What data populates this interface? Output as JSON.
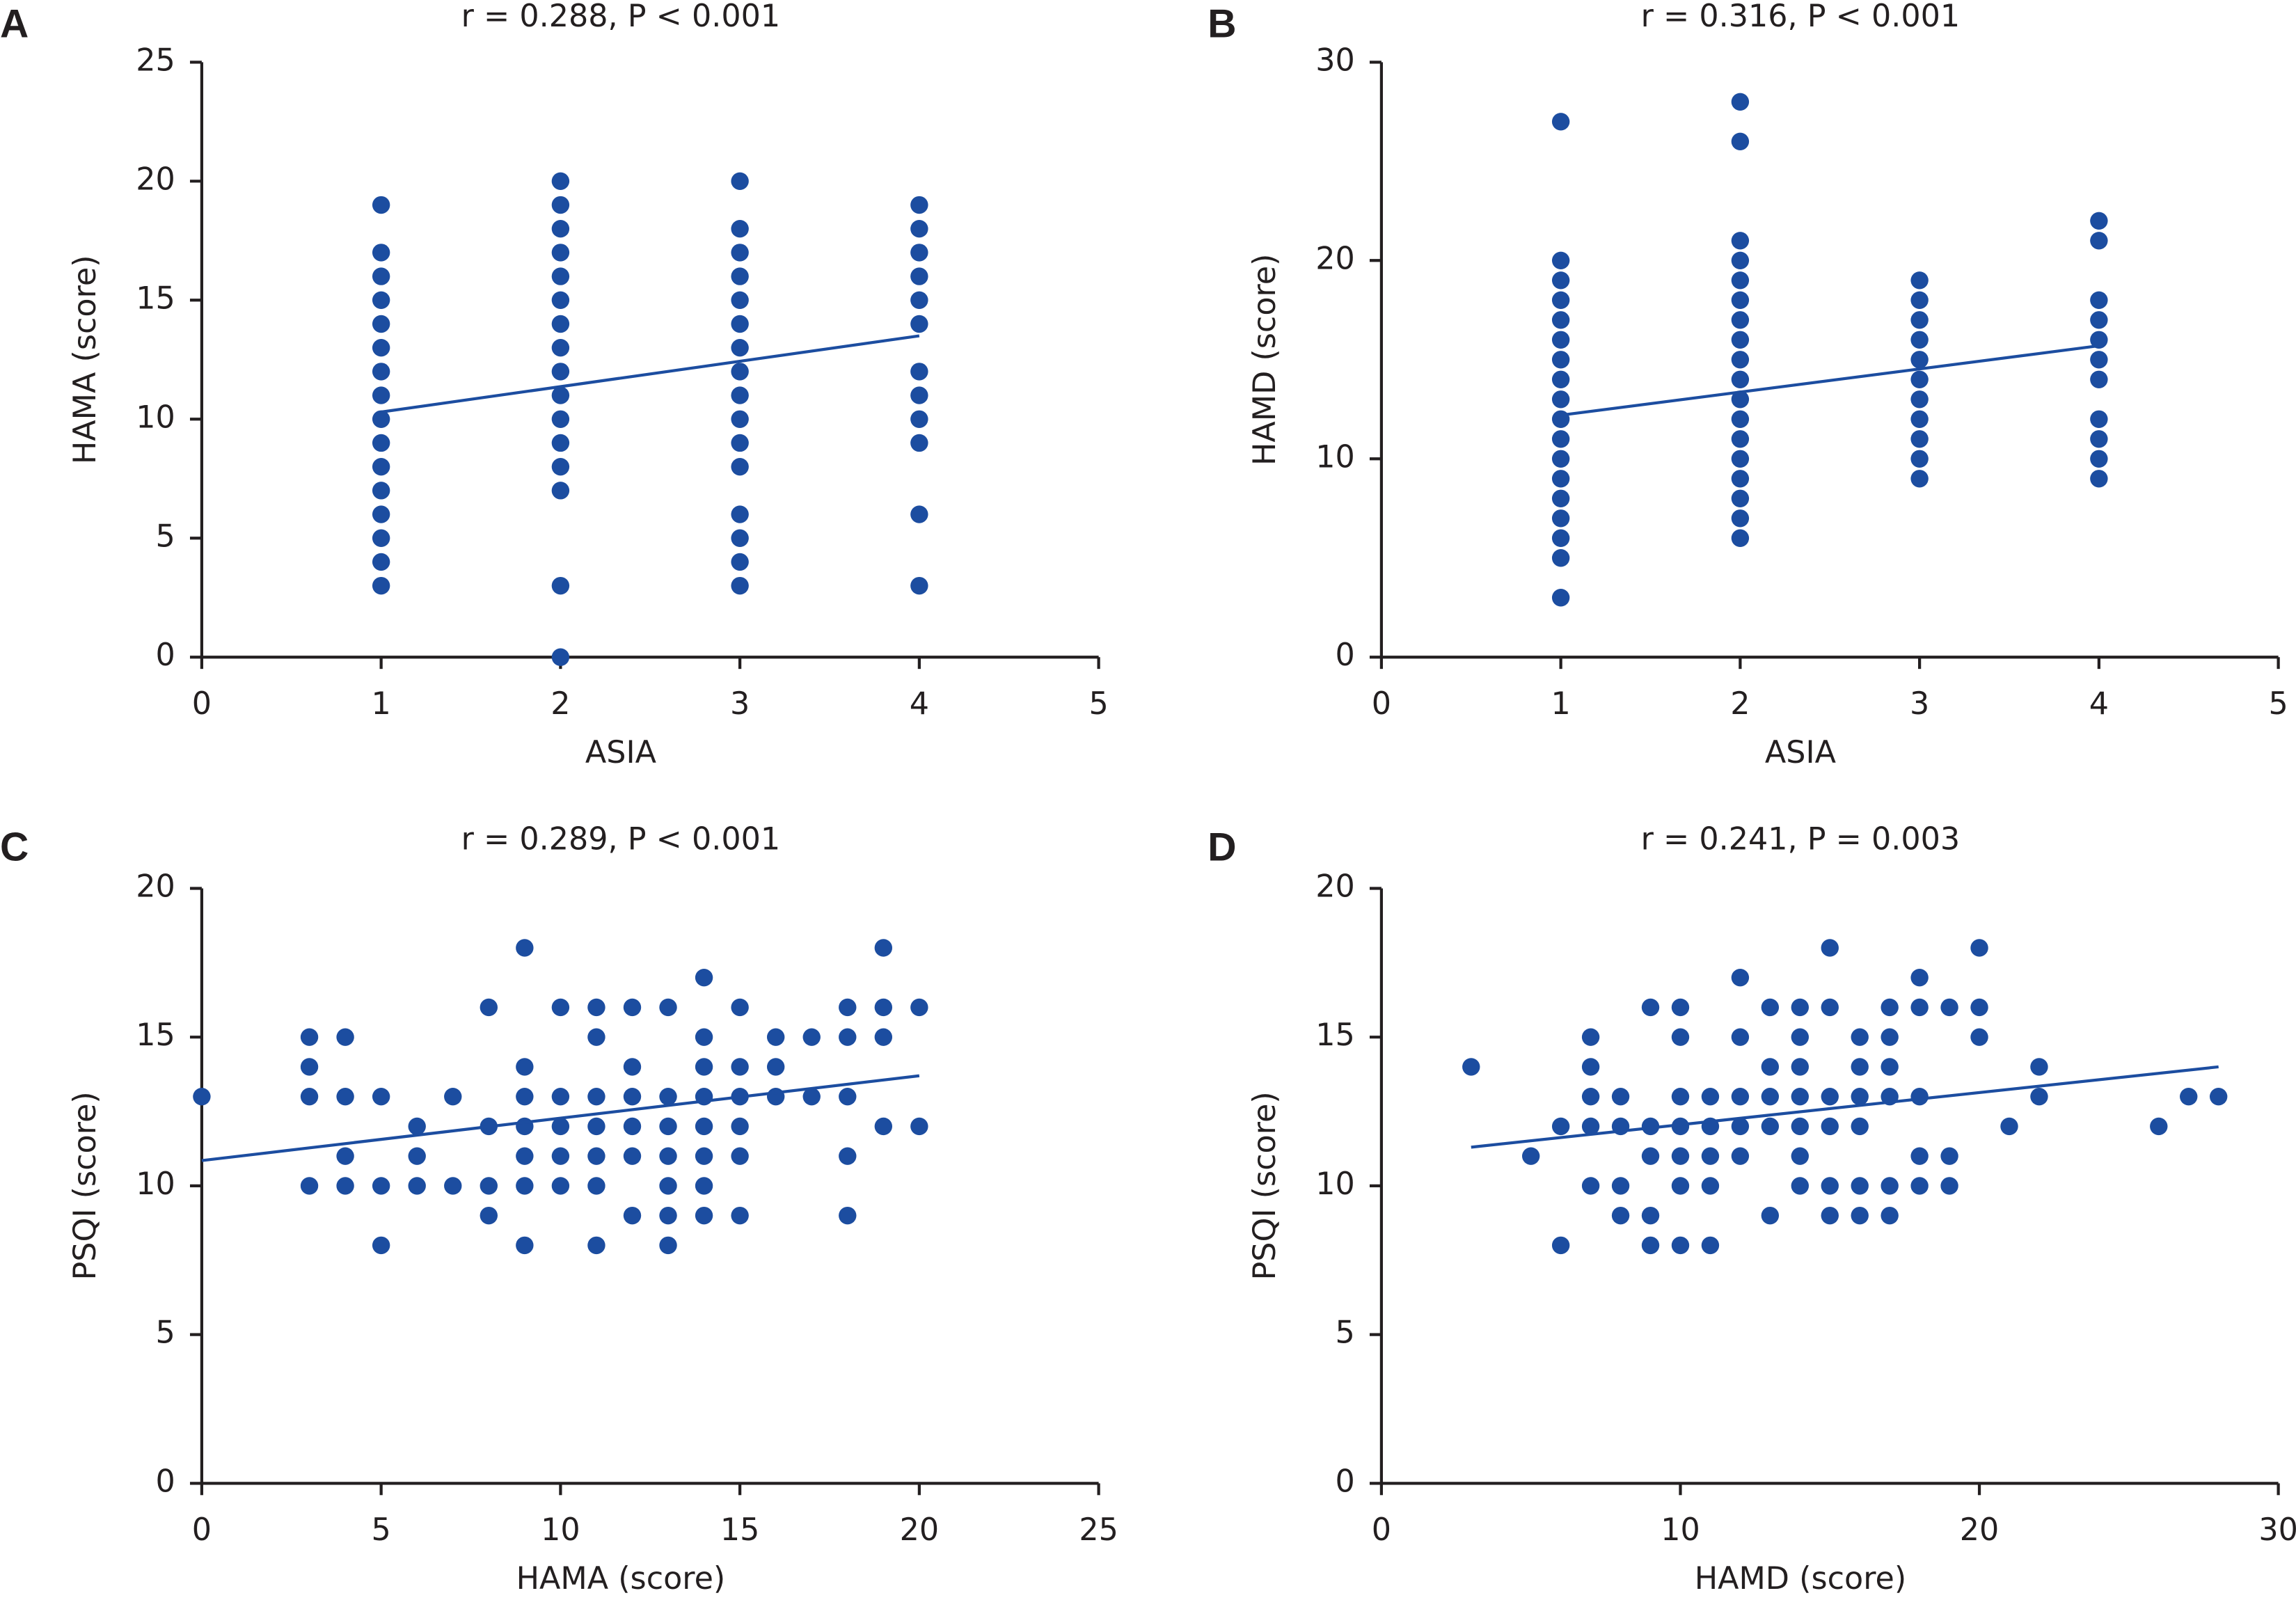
{
  "chart_data": [
    {
      "type": "scatter",
      "panel": "A",
      "title": "r = 0.288, P < 0.001",
      "xlabel": "ASIA",
      "ylabel": "HAMA (score)",
      "x": [
        1,
        1,
        1,
        1,
        1,
        1,
        1,
        1,
        1,
        1,
        1,
        1,
        1,
        1,
        1,
        1,
        2,
        2,
        2,
        2,
        2,
        2,
        2,
        2,
        2,
        2,
        2,
        2,
        2,
        2,
        2,
        2,
        3,
        3,
        3,
        3,
        3,
        3,
        3,
        3,
        3,
        3,
        3,
        3,
        3,
        3,
        3,
        3,
        4,
        4,
        4,
        4,
        4,
        4,
        4,
        4,
        4,
        4,
        4,
        4
      ],
      "values": [
        3,
        4,
        5,
        6,
        7,
        8,
        9,
        10,
        11,
        12,
        13,
        14,
        15,
        16,
        17,
        19,
        0,
        3,
        7,
        8,
        9,
        10,
        11,
        12,
        13,
        14,
        15,
        16,
        17,
        18,
        19,
        20,
        3,
        4,
        5,
        6,
        8,
        9,
        10,
        11,
        12,
        13,
        14,
        15,
        16,
        17,
        18,
        20,
        3,
        6,
        9,
        10,
        11,
        12,
        14,
        15,
        16,
        17,
        18,
        19
      ],
      "xlim": [
        0,
        5
      ],
      "ylim": [
        0,
        25
      ],
      "xticks": [
        0,
        1,
        2,
        3,
        4,
        5
      ],
      "yticks": [
        0,
        5,
        10,
        15,
        20,
        25
      ],
      "color": "#1c4da0",
      "fit": {
        "x": [
          1,
          4
        ],
        "values": [
          10.3,
          13.5
        ]
      }
    },
    {
      "type": "scatter",
      "panel": "B",
      "title": "r = 0.316, P < 0.001",
      "xlabel": "ASIA",
      "ylabel": "HAMD (score)",
      "x": [
        1,
        1,
        1,
        1,
        1,
        1,
        1,
        1,
        1,
        1,
        1,
        1,
        1,
        1,
        1,
        1,
        1,
        1,
        2,
        2,
        2,
        2,
        2,
        2,
        2,
        2,
        2,
        2,
        2,
        2,
        2,
        2,
        2,
        2,
        2,
        2,
        3,
        3,
        3,
        3,
        3,
        3,
        3,
        3,
        3,
        3,
        3,
        4,
        4,
        4,
        4,
        4,
        4,
        4,
        4,
        4,
        4,
        4
      ],
      "values": [
        3,
        5,
        6,
        7,
        8,
        9,
        10,
        11,
        12,
        13,
        14,
        15,
        16,
        17,
        18,
        19,
        20,
        27,
        6,
        7,
        8,
        9,
        10,
        11,
        12,
        13,
        14,
        15,
        16,
        17,
        18,
        19,
        20,
        21,
        26,
        28,
        9,
        10,
        11,
        12,
        13,
        14,
        15,
        16,
        17,
        18,
        19,
        9,
        10,
        11,
        12,
        14,
        15,
        16,
        17,
        18,
        21,
        22
      ],
      "xlim": [
        0,
        5
      ],
      "ylim": [
        0,
        30
      ],
      "xticks": [
        0,
        1,
        2,
        3,
        4,
        5
      ],
      "yticks": [
        0,
        10,
        20,
        30
      ],
      "color": "#1c4da0",
      "fit": {
        "x": [
          1,
          4
        ],
        "values": [
          12.2,
          15.7
        ]
      }
    },
    {
      "type": "scatter",
      "panel": "C",
      "title": "r = 0.289, P < 0.001",
      "xlabel": "HAMA (score)",
      "ylabel": "PSQI (score)",
      "x": [
        0,
        3,
        3,
        3,
        3,
        4,
        4,
        4,
        4,
        5,
        5,
        5,
        6,
        6,
        6,
        7,
        7,
        8,
        8,
        8,
        8,
        9,
        9,
        9,
        9,
        9,
        9,
        9,
        10,
        10,
        10,
        10,
        10,
        11,
        11,
        11,
        11,
        11,
        11,
        11,
        12,
        12,
        12,
        12,
        12,
        12,
        13,
        13,
        13,
        13,
        13,
        13,
        13,
        14,
        14,
        14,
        14,
        14,
        14,
        14,
        14,
        15,
        15,
        15,
        15,
        15,
        15,
        16,
        16,
        16,
        17,
        17,
        18,
        18,
        18,
        18,
        18,
        19,
        19,
        19,
        19,
        20,
        20
      ],
      "values": [
        13,
        15,
        14,
        13,
        10,
        15,
        13,
        11,
        10,
        13,
        10,
        8,
        12,
        11,
        10,
        13,
        10,
        16,
        12,
        10,
        9,
        18,
        14,
        13,
        12,
        11,
        10,
        8,
        16,
        13,
        12,
        11,
        10,
        16,
        15,
        13,
        12,
        11,
        10,
        8,
        16,
        14,
        13,
        12,
        11,
        9,
        16,
        13,
        12,
        11,
        10,
        9,
        8,
        17,
        15,
        14,
        13,
        12,
        11,
        10,
        9,
        16,
        14,
        13,
        12,
        11,
        9,
        15,
        14,
        13,
        15,
        13,
        16,
        15,
        13,
        11,
        9,
        18,
        16,
        15,
        12,
        16,
        12
      ],
      "xlim": [
        0,
        25
      ],
      "ylim": [
        0,
        20
      ],
      "xticks": [
        0,
        5,
        10,
        15,
        20,
        25
      ],
      "yticks": [
        0,
        5,
        10,
        15,
        20
      ],
      "color": "#1c4da0",
      "fit": {
        "x": [
          0,
          20
        ],
        "values": [
          10.85,
          13.7
        ]
      }
    },
    {
      "type": "scatter",
      "panel": "D",
      "title": "r = 0.241, P = 0.003",
      "xlabel": "HAMD (score)",
      "ylabel": "PSQI (score)",
      "x": [
        3,
        5,
        6,
        6,
        7,
        7,
        7,
        7,
        7,
        8,
        8,
        8,
        8,
        9,
        9,
        9,
        9,
        9,
        10,
        10,
        10,
        10,
        10,
        10,
        10,
        11,
        11,
        11,
        11,
        11,
        12,
        12,
        12,
        12,
        12,
        13,
        13,
        13,
        13,
        13,
        14,
        14,
        14,
        14,
        14,
        14,
        14,
        15,
        15,
        15,
        15,
        15,
        15,
        16,
        16,
        16,
        16,
        16,
        16,
        17,
        17,
        17,
        17,
        17,
        17,
        18,
        18,
        18,
        18,
        18,
        19,
        19,
        19,
        20,
        20,
        20,
        21,
        22,
        22,
        26,
        27,
        28
      ],
      "values": [
        14,
        11,
        12,
        8,
        15,
        14,
        13,
        12,
        10,
        13,
        12,
        10,
        9,
        16,
        12,
        11,
        9,
        8,
        16,
        15,
        13,
        12,
        11,
        10,
        8,
        13,
        12,
        11,
        10,
        8,
        17,
        15,
        13,
        12,
        11,
        16,
        14,
        13,
        12,
        9,
        16,
        15,
        14,
        13,
        12,
        11,
        10,
        18,
        16,
        13,
        12,
        10,
        9,
        15,
        14,
        13,
        12,
        10,
        9,
        16,
        15,
        14,
        13,
        10,
        9,
        17,
        16,
        13,
        11,
        10,
        16,
        11,
        10,
        18,
        16,
        15,
        12,
        14,
        13,
        12,
        13,
        13
      ],
      "xlim": [
        0,
        30
      ],
      "ylim": [
        0,
        20
      ],
      "xticks": [
        0,
        10,
        20,
        30
      ],
      "yticks": [
        0,
        5,
        10,
        15,
        20
      ],
      "color": "#1c4da0",
      "fit": {
        "x": [
          3,
          28
        ],
        "values": [
          11.3,
          14.0
        ]
      }
    }
  ]
}
